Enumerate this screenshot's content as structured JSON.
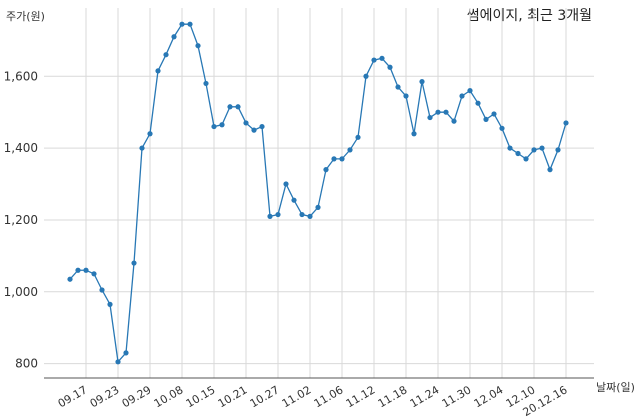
{
  "chart_data": {
    "type": "line",
    "title": "썸에이지, 최근 3개월",
    "ylabel": "주가(원)",
    "xlabel": "날짜(일)",
    "ylim": [
      760,
      1790
    ],
    "yticks": [
      800,
      1000,
      1200,
      1400,
      1600
    ],
    "ytick_labels": [
      "800",
      "1,000",
      "1,200",
      "1,400",
      "1,600"
    ],
    "grid": true,
    "x_tick_labels": [
      "09.17",
      "09.23",
      "09.29",
      "10.08",
      "10.15",
      "10.21",
      "10.27",
      "11.02",
      "11.06",
      "11.12",
      "11.18",
      "11.24",
      "11.30",
      "12.04",
      "12.10",
      "20.12.16"
    ],
    "x_tick_index": [
      2,
      6,
      10,
      14,
      18,
      22,
      26,
      30,
      34,
      38,
      42,
      46,
      50,
      54,
      58,
      62
    ],
    "series": [
      {
        "values": [
          1035,
          1060,
          1060,
          1050,
          1005,
          965,
          805,
          830,
          1080,
          1400,
          1440,
          1615,
          1660,
          1710,
          1745,
          1745,
          1685,
          1580,
          1460,
          1465,
          1515,
          1515,
          1470,
          1450,
          1460,
          1210,
          1215,
          1300,
          1255,
          1215,
          1210,
          1235,
          1340,
          1370,
          1370,
          1395,
          1430,
          1600,
          1645,
          1650,
          1625,
          1570,
          1545,
          1440,
          1585,
          1485,
          1500,
          1500,
          1475,
          1545,
          1560,
          1525,
          1480,
          1495,
          1455,
          1400,
          1385,
          1370,
          1395,
          1400,
          1340,
          1395,
          1470
        ]
      }
    ]
  }
}
